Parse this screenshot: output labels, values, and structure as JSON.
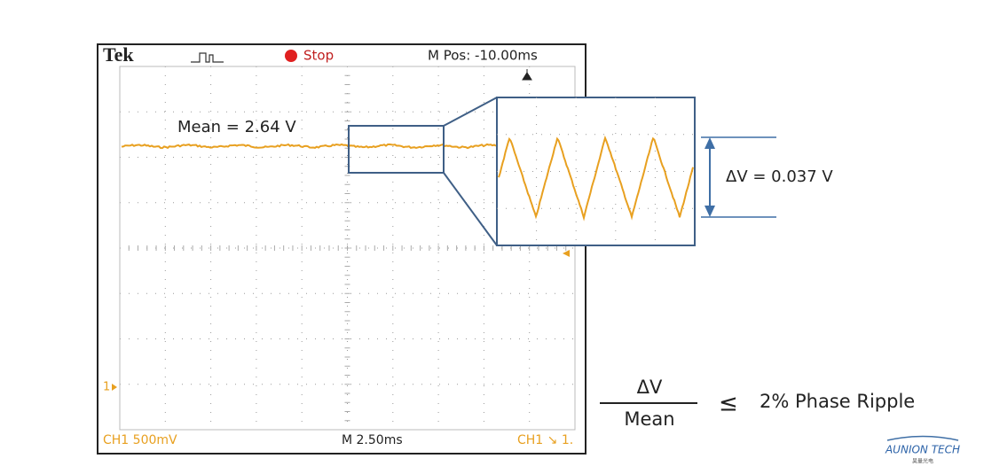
{
  "scope": {
    "brand": "Tek",
    "state": "Stop",
    "position": "M Pos: -10.00ms",
    "channel": "CH1  500mV",
    "timebase": "M 2.50ms",
    "trigger": "CH1 ↘ 1.",
    "marker": "1"
  },
  "annotations": {
    "mean": "Mean = 2.64 V",
    "delta": "ΔV = 0.037 V"
  },
  "formula": {
    "numerator": "ΔV",
    "denominator": "Mean",
    "relation": "≤",
    "result": "2% Phase Ripple"
  },
  "logo": {
    "name": "AUNION TECH",
    "subtitle": "昊量光电"
  }
}
